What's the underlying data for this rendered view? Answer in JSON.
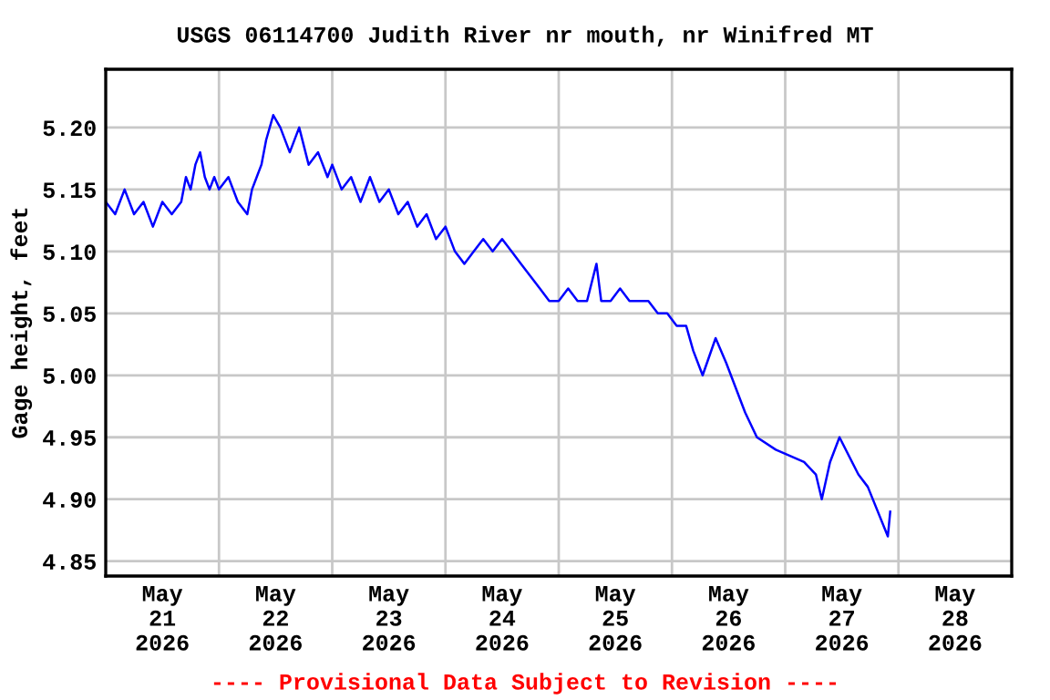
{
  "chart_data": {
    "type": "line",
    "title": "USGS 06114700 Judith River nr mouth, nr Winifred MT",
    "ylabel": "Gage height, feet",
    "annotations": [
      "---- Provisional Data Subject to Revision ----"
    ],
    "grid": true,
    "marker": "none",
    "line_style": "solid",
    "xlim": [
      "2026-05-21T00:00",
      "2026-05-29T00:00"
    ],
    "xticks": [
      {
        "value": "2026-05-21T12:00",
        "label": "May\n21\n2026"
      },
      {
        "value": "2026-05-22T00:00",
        "label": null
      },
      {
        "value": "2026-05-22T12:00",
        "label": "May\n22\n2026"
      },
      {
        "value": "2026-05-23T00:00",
        "label": null
      },
      {
        "value": "2026-05-23T12:00",
        "label": "May\n23\n2026"
      },
      {
        "value": "2026-05-24T00:00",
        "label": null
      },
      {
        "value": "2026-05-24T12:00",
        "label": "May\n24\n2026"
      },
      {
        "value": "2026-05-25T00:00",
        "label": null
      },
      {
        "value": "2026-05-25T12:00",
        "label": "May\n25\n2026"
      },
      {
        "value": "2026-05-26T00:00",
        "label": null
      },
      {
        "value": "2026-05-26T12:00",
        "label": "May\n26\n2026"
      },
      {
        "value": "2026-05-27T00:00",
        "label": null
      },
      {
        "value": "2026-05-27T12:00",
        "label": "May\n27\n2026"
      },
      {
        "value": "2026-05-28T00:00",
        "label": null
      },
      {
        "value": "2026-05-28T12:00",
        "label": "May\n28\n2026"
      }
    ],
    "ylim": [
      4.838,
      5.247
    ],
    "yticks": [
      {
        "value": 4.85,
        "label": "4.85"
      },
      {
        "value": 4.9,
        "label": "4.90"
      },
      {
        "value": 4.95,
        "label": "4.95"
      },
      {
        "value": 5.0,
        "label": "5.00"
      },
      {
        "value": 5.05,
        "label": "5.05"
      },
      {
        "value": 5.1,
        "label": "5.10"
      },
      {
        "value": 5.15,
        "label": "5.15"
      },
      {
        "value": 5.2,
        "label": "5.20"
      }
    ],
    "x": [
      "2026-05-21T00:00",
      "2026-05-21T02:00",
      "2026-05-21T04:00",
      "2026-05-21T06:00",
      "2026-05-21T08:00",
      "2026-05-21T10:00",
      "2026-05-21T12:00",
      "2026-05-21T14:00",
      "2026-05-21T16:00",
      "2026-05-21T17:00",
      "2026-05-21T18:00",
      "2026-05-21T19:00",
      "2026-05-21T20:00",
      "2026-05-21T21:00",
      "2026-05-21T22:00",
      "2026-05-21T23:00",
      "2026-05-22T00:00",
      "2026-05-22T02:00",
      "2026-05-22T04:00",
      "2026-05-22T06:00",
      "2026-05-22T07:00",
      "2026-05-22T08:00",
      "2026-05-22T09:00",
      "2026-05-22T10:00",
      "2026-05-22T11:30",
      "2026-05-22T13:00",
      "2026-05-22T15:00",
      "2026-05-22T17:00",
      "2026-05-22T19:00",
      "2026-05-22T21:00",
      "2026-05-22T23:00",
      "2026-05-23T00:00",
      "2026-05-23T02:00",
      "2026-05-23T04:00",
      "2026-05-23T06:00",
      "2026-05-23T08:00",
      "2026-05-23T10:00",
      "2026-05-23T12:00",
      "2026-05-23T14:00",
      "2026-05-23T16:00",
      "2026-05-23T18:00",
      "2026-05-23T20:00",
      "2026-05-23T22:00",
      "2026-05-24T00:00",
      "2026-05-24T02:00",
      "2026-05-24T04:00",
      "2026-05-24T06:00",
      "2026-05-24T08:00",
      "2026-05-24T10:00",
      "2026-05-24T12:00",
      "2026-05-24T14:00",
      "2026-05-24T16:00",
      "2026-05-24T18:00",
      "2026-05-24T20:00",
      "2026-05-24T22:00",
      "2026-05-25T00:00",
      "2026-05-25T02:00",
      "2026-05-25T04:00",
      "2026-05-25T06:00",
      "2026-05-25T08:00",
      "2026-05-25T09:00",
      "2026-05-25T11:00",
      "2026-05-25T13:00",
      "2026-05-25T15:00",
      "2026-05-25T17:00",
      "2026-05-25T19:00",
      "2026-05-25T21:00",
      "2026-05-25T23:00",
      "2026-05-26T01:00",
      "2026-05-26T03:00",
      "2026-05-26T04:30",
      "2026-05-26T06:30",
      "2026-05-26T09:15",
      "2026-05-26T11:30",
      "2026-05-26T15:30",
      "2026-05-26T18:00",
      "2026-05-26T22:00",
      "2026-05-27T04:00",
      "2026-05-27T06:30",
      "2026-05-27T07:45",
      "2026-05-27T09:30",
      "2026-05-27T11:30",
      "2026-05-27T15:30",
      "2026-05-27T17:30",
      "2026-05-27T21:45",
      "2026-05-27T22:15"
    ],
    "series": [
      {
        "color": "#0000ff",
        "values": [
          5.14,
          5.13,
          5.15,
          5.13,
          5.14,
          5.12,
          5.14,
          5.13,
          5.14,
          5.16,
          5.15,
          5.17,
          5.18,
          5.16,
          5.15,
          5.16,
          5.15,
          5.16,
          5.14,
          5.13,
          5.15,
          5.16,
          5.17,
          5.19,
          5.21,
          5.2,
          5.18,
          5.2,
          5.17,
          5.18,
          5.16,
          5.17,
          5.15,
          5.16,
          5.14,
          5.16,
          5.14,
          5.15,
          5.13,
          5.14,
          5.12,
          5.13,
          5.11,
          5.12,
          5.1,
          5.09,
          5.1,
          5.11,
          5.1,
          5.11,
          5.1,
          5.09,
          5.08,
          5.07,
          5.06,
          5.06,
          5.07,
          5.06,
          5.06,
          5.09,
          5.06,
          5.06,
          5.07,
          5.06,
          5.06,
          5.06,
          5.05,
          5.05,
          5.04,
          5.04,
          5.02,
          5.0,
          5.03,
          5.01,
          4.97,
          4.95,
          4.94,
          4.93,
          4.92,
          4.9,
          4.93,
          4.95,
          4.92,
          4.91,
          4.87,
          4.89
        ]
      }
    ]
  }
}
